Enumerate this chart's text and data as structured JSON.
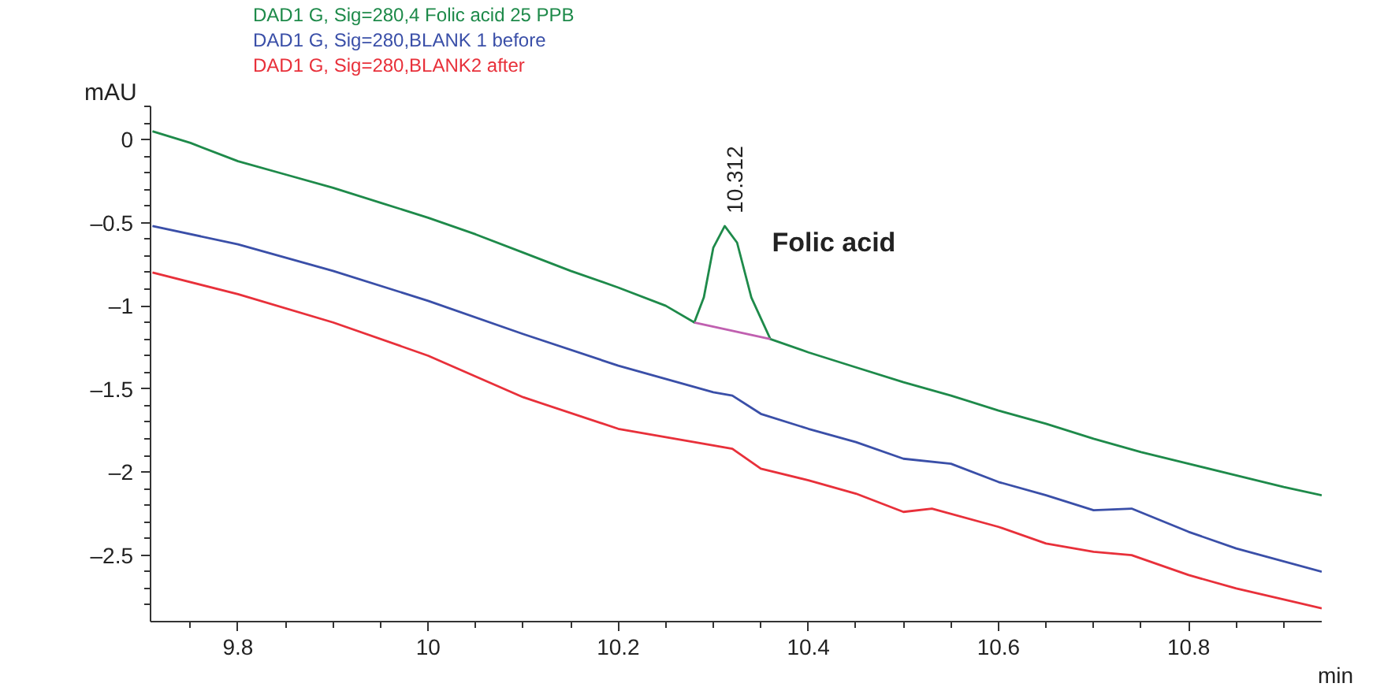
{
  "chart_data": {
    "type": "line",
    "xlabel": "min",
    "ylabel": "mAU",
    "xlim": [
      9.708,
      10.94
    ],
    "ylim": [
      -2.9,
      0.2
    ],
    "xticks": [
      9.8,
      {
        "value": 10,
        "label": "10"
      },
      10.2,
      10.4,
      10.6,
      10.8
    ],
    "yticks": [
      {
        "value": 0,
        "label": "0"
      },
      {
        "value": -0.5,
        "label": "–0.5"
      },
      {
        "value": -1,
        "label": "–1"
      },
      {
        "value": -1.5,
        "label": "–1.5"
      },
      {
        "value": -2,
        "label": "–2"
      },
      {
        "value": -2.5,
        "label": "–2.5"
      }
    ],
    "grid": false,
    "legend": "top left",
    "marker": "none",
    "line_style": "solid",
    "annotations": [
      {
        "text": "10.312",
        "x": 10.312,
        "y": -0.52
      },
      {
        "text": "Folic acid",
        "x": 10.312,
        "y": -0.52
      }
    ],
    "series": [
      {
        "name": "DAD1 G, Sig=280,4 Folic acid 25 PPB",
        "color": "#1e8a4a",
        "x": [
          9.71,
          9.75,
          9.8,
          9.85,
          9.9,
          9.95,
          10.0,
          10.05,
          10.1,
          10.15,
          10.2,
          10.25,
          10.28,
          10.29,
          10.3,
          10.312,
          10.325,
          10.34,
          10.36,
          10.4,
          10.45,
          10.5,
          10.55,
          10.6,
          10.65,
          10.7,
          10.75,
          10.8,
          10.85,
          10.9,
          10.94
        ],
        "values": [
          0.05,
          -0.02,
          -0.13,
          -0.21,
          -0.29,
          -0.38,
          -0.47,
          -0.57,
          -0.68,
          -0.79,
          -0.89,
          -1.0,
          -1.1,
          -0.95,
          -0.65,
          -0.52,
          -0.62,
          -0.95,
          -1.2,
          -1.28,
          -1.37,
          -1.46,
          -1.54,
          -1.63,
          -1.71,
          -1.8,
          -1.88,
          -1.95,
          -2.02,
          -2.09,
          -2.14
        ]
      },
      {
        "name": "DAD1 G, Sig=280,BLANK 1 before",
        "color": "#3a4fa8",
        "x": [
          9.71,
          9.8,
          9.9,
          10.0,
          10.1,
          10.2,
          10.3,
          10.32,
          10.35,
          10.4,
          10.45,
          10.5,
          10.55,
          10.6,
          10.65,
          10.7,
          10.74,
          10.8,
          10.85,
          10.94
        ],
        "values": [
          -0.52,
          -0.63,
          -0.79,
          -0.97,
          -1.17,
          -1.36,
          -1.52,
          -1.54,
          -1.65,
          -1.74,
          -1.82,
          -1.92,
          -1.95,
          -2.06,
          -2.14,
          -2.23,
          -2.22,
          -2.36,
          -2.46,
          -2.6
        ]
      },
      {
        "name": "DAD1 G, Sig=280,BLANK2 after",
        "color": "#e8303a",
        "x": [
          9.71,
          9.8,
          9.9,
          10.0,
          10.1,
          10.2,
          10.3,
          10.32,
          10.35,
          10.4,
          10.45,
          10.5,
          10.53,
          10.6,
          10.65,
          10.7,
          10.74,
          10.8,
          10.85,
          10.94
        ],
        "values": [
          -0.8,
          -0.93,
          -1.1,
          -1.3,
          -1.55,
          -1.74,
          -1.84,
          -1.86,
          -1.98,
          -2.05,
          -2.13,
          -2.24,
          -2.22,
          -2.33,
          -2.43,
          -2.48,
          -2.5,
          -2.62,
          -2.7,
          -2.82
        ]
      },
      {
        "color": "#c060b0",
        "x": [
          10.28,
          10.36
        ],
        "values": [
          -1.1,
          -1.2
        ]
      }
    ]
  }
}
